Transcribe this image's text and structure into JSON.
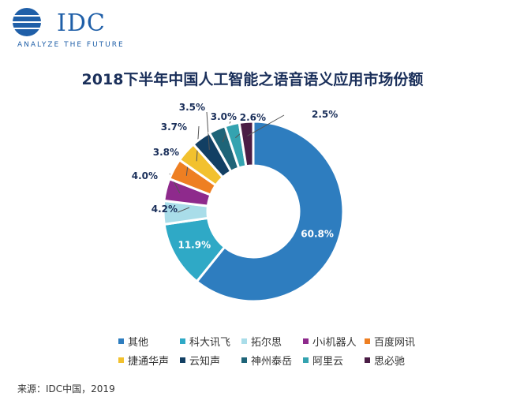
{
  "logo": {
    "text": "IDC",
    "tagline": "ANALYZE THE FUTURE"
  },
  "source": "来源：IDC中国，2019",
  "chart_data": {
    "type": "pie",
    "donut": true,
    "title": "2018下半年中国人工智能之语音语义应用市场份额",
    "legend_position": "bottom",
    "slices": [
      {
        "name": "其他",
        "value": 60.8,
        "label": "60.8%",
        "color": "#2e7dbf"
      },
      {
        "name": "科大讯飞",
        "value": 11.9,
        "label": "11.9%",
        "color": "#2fa9c6"
      },
      {
        "name": "拓尔思",
        "value": 4.2,
        "label": "4.2%",
        "color": "#a9dde9"
      },
      {
        "name": "小i机器人",
        "value": 4.0,
        "label": "4.0%",
        "color": "#8e2a8c"
      },
      {
        "name": "百度网讯",
        "value": 3.8,
        "label": "3.8%",
        "color": "#ee7f22"
      },
      {
        "name": "捷通华声",
        "value": 3.7,
        "label": "3.7%",
        "color": "#f2c12e"
      },
      {
        "name": "云知声",
        "value": 3.5,
        "label": "3.5%",
        "color": "#123f63"
      },
      {
        "name": "神州泰岳",
        "value": 3.0,
        "label": "3.0%",
        "color": "#1e6478"
      },
      {
        "name": "阿里云",
        "value": 2.6,
        "label": "2.6%",
        "color": "#34a3b0"
      },
      {
        "name": "思必驰",
        "value": 2.5,
        "label": "2.5%",
        "color": "#4a1d45"
      }
    ]
  }
}
